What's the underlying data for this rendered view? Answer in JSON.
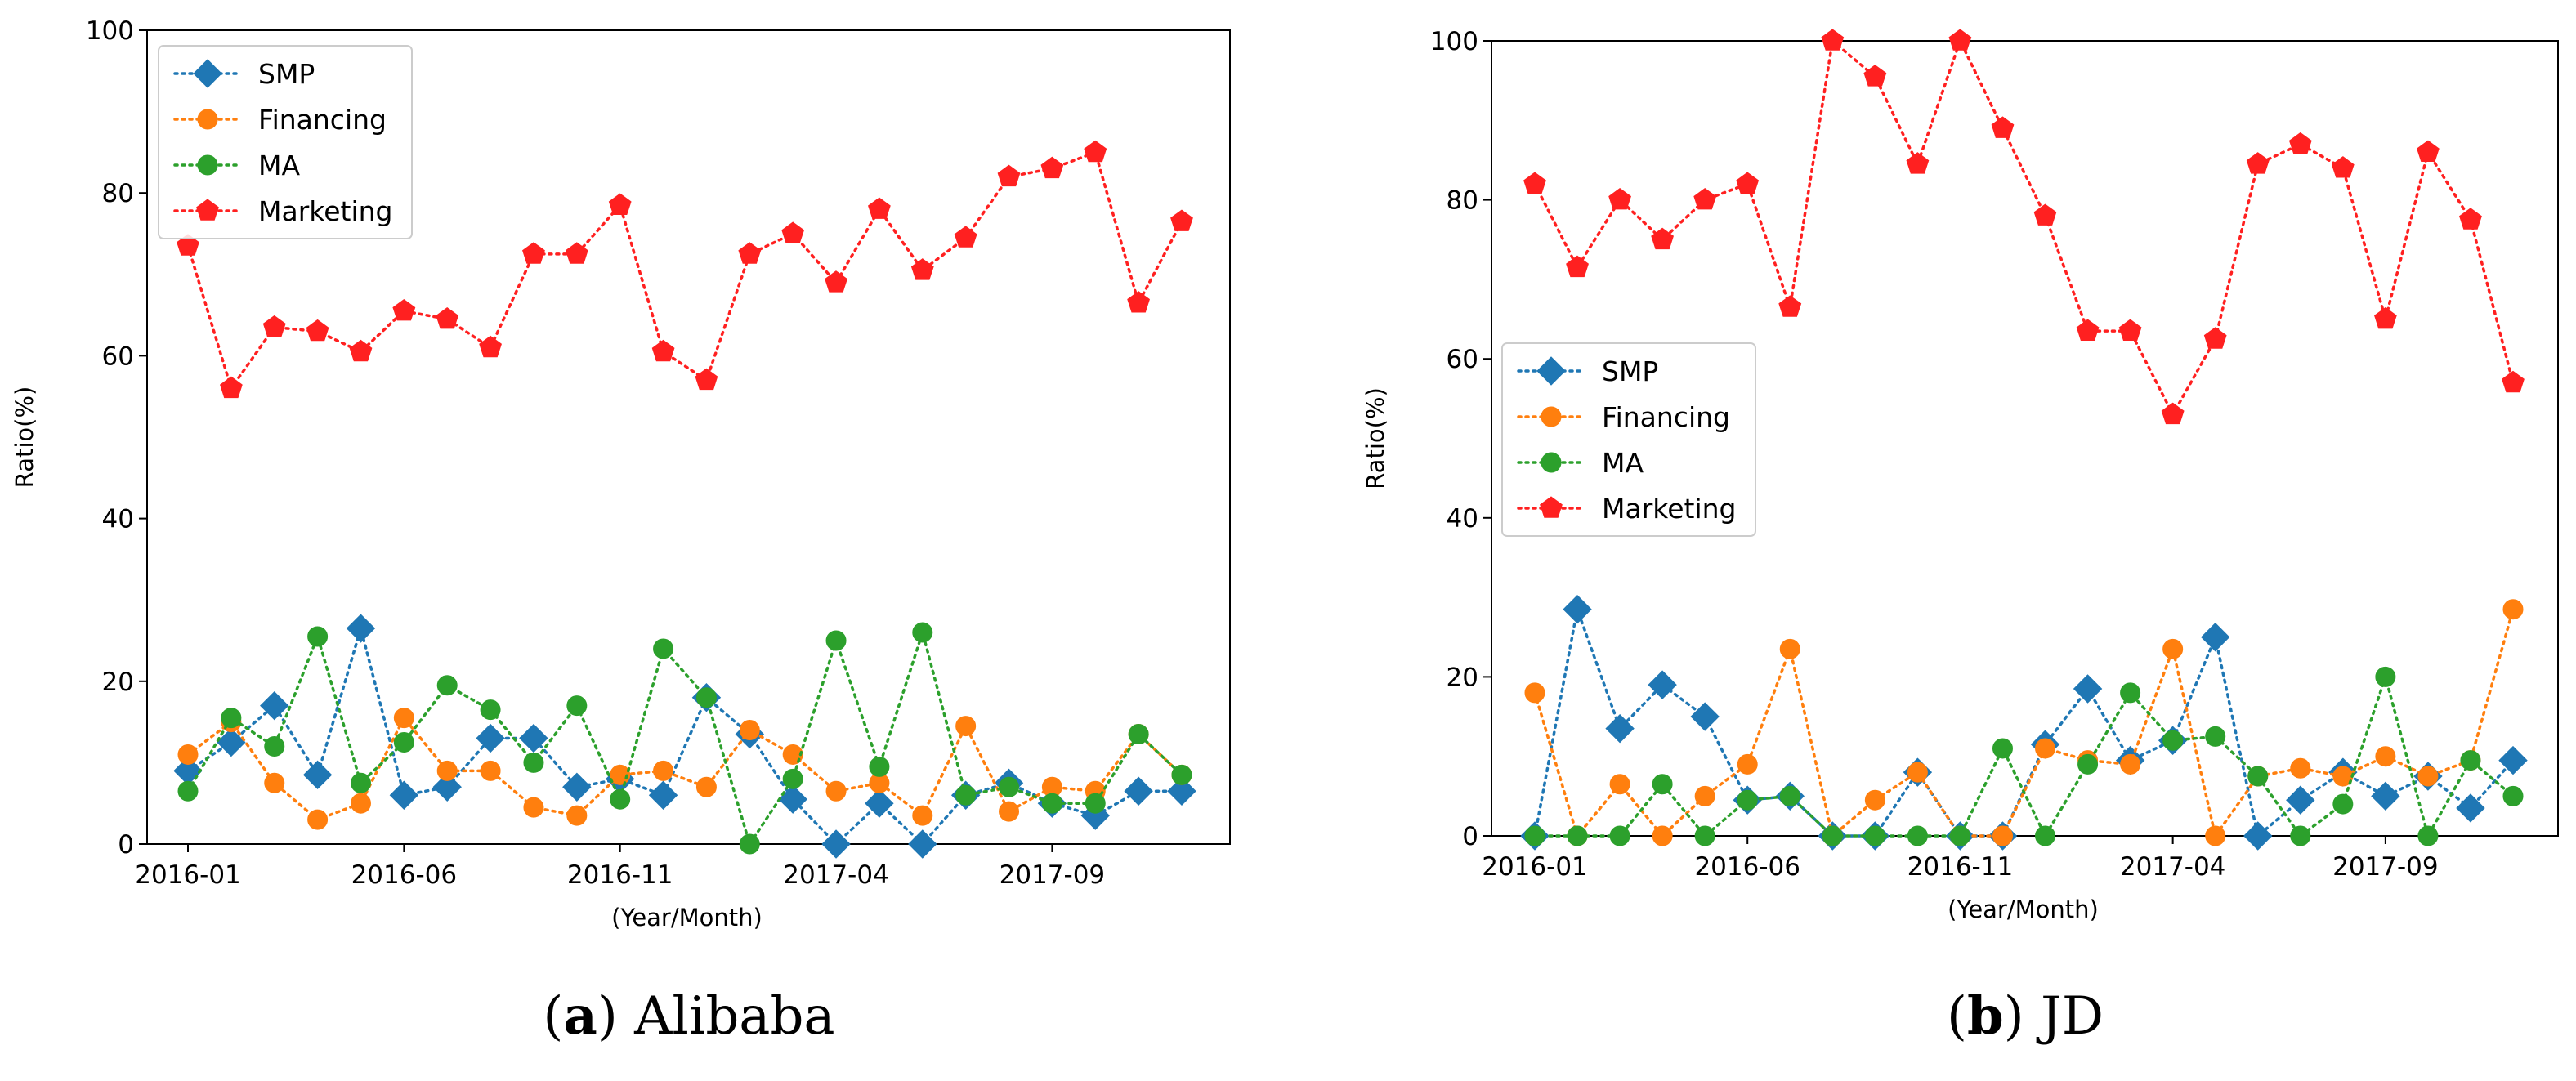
{
  "chart_data": [
    {
      "type": "line",
      "caption_letter": "a",
      "caption_rest": ") Alibaba",
      "caption_open": "(",
      "xlabel": "(Year/Month)",
      "ylabel": "Ratio(%)",
      "ylim": [
        0,
        100
      ],
      "yticks": [
        0,
        20,
        40,
        60,
        80,
        100
      ],
      "xtick_labels": [
        "2016-01",
        "2016-06",
        "2016-11",
        "2017-04",
        "2017-09"
      ],
      "xtick_index": [
        0,
        5,
        10,
        15,
        20
      ],
      "n_points": 24,
      "legend_position": "upper-left",
      "series": [
        {
          "name": "SMP",
          "color": "#1f77b4",
          "marker": "diamond",
          "values": [
            9,
            12.5,
            17,
            8.5,
            26.5,
            6,
            7,
            13,
            13,
            7,
            8,
            6,
            18,
            13.5,
            5.5,
            0,
            5,
            0,
            6,
            7.5,
            5,
            3.5,
            6.5,
            6.5
          ]
        },
        {
          "name": "Financing",
          "color": "#ff7f0e",
          "marker": "circle",
          "values": [
            11,
            15,
            7.5,
            3,
            5,
            15.5,
            9,
            9,
            4.5,
            3.5,
            8.5,
            9,
            7,
            14,
            11,
            6.5,
            7.5,
            3.5,
            14.5,
            4,
            7,
            6.5,
            13.5,
            8.5
          ]
        },
        {
          "name": "MA",
          "color": "#2ca02c",
          "marker": "circle",
          "values": [
            6.5,
            15.5,
            12,
            25.5,
            7.5,
            12.5,
            19.5,
            16.5,
            10,
            17,
            5.5,
            24,
            18,
            0,
            8,
            25,
            9.5,
            26,
            6,
            7,
            5,
            5,
            13.5,
            8.5
          ]
        },
        {
          "name": "Marketing",
          "color": "#ff2020",
          "marker": "pentagon",
          "values": [
            73.5,
            56,
            63.5,
            63,
            60.5,
            65.5,
            64.5,
            61,
            72.5,
            72.5,
            78.5,
            60.5,
            57,
            72.5,
            75,
            69,
            78,
            70.5,
            74.5,
            82,
            83,
            85,
            66.5,
            76.5
          ]
        }
      ]
    },
    {
      "type": "line",
      "caption_letter": "b",
      "caption_rest": ") JD",
      "caption_open": "(",
      "xlabel": "(Year/Month)",
      "ylabel": "Ratio(%)",
      "ylim": [
        0,
        100
      ],
      "yticks": [
        0,
        20,
        40,
        60,
        80,
        100
      ],
      "xtick_labels": [
        "2016-01",
        "2016-06",
        "2016-11",
        "2017-04",
        "2017-09"
      ],
      "xtick_index": [
        0,
        5,
        10,
        15,
        20
      ],
      "n_points": 24,
      "legend_position": "center-left",
      "series": [
        {
          "name": "SMP",
          "color": "#1f77b4",
          "marker": "diamond",
          "values": [
            0,
            28.5,
            13.5,
            19,
            15,
            4.5,
            5,
            0,
            0,
            8,
            0,
            0,
            11.5,
            18.5,
            9.5,
            12,
            25,
            0,
            4.5,
            8,
            5,
            7.5,
            3.5,
            9.5
          ]
        },
        {
          "name": "Financing",
          "color": "#ff7f0e",
          "marker": "circle",
          "values": [
            18,
            0,
            6.5,
            0,
            5,
            9,
            23.5,
            0,
            4.5,
            8,
            0,
            0,
            11,
            9.5,
            9,
            23.5,
            0,
            7.5,
            8.5,
            7.5,
            10,
            7.5,
            9.5,
            28.5
          ]
        },
        {
          "name": "MA",
          "color": "#2ca02c",
          "marker": "circle",
          "values": [
            0,
            0,
            0,
            6.5,
            0,
            4.5,
            5,
            0,
            0,
            0,
            0,
            11,
            0,
            9,
            18,
            12,
            12.5,
            7.5,
            0,
            4,
            20,
            0,
            9.5,
            5
          ]
        },
        {
          "name": "Marketing",
          "color": "#ff2020",
          "marker": "pentagon",
          "values": [
            82,
            71.5,
            80,
            75,
            80,
            82,
            66.5,
            100,
            95.5,
            84.5,
            100,
            89,
            78,
            63.5,
            63.5,
            53,
            62.5,
            84.5,
            87,
            84,
            65,
            86,
            77.5,
            57
          ]
        }
      ]
    }
  ]
}
